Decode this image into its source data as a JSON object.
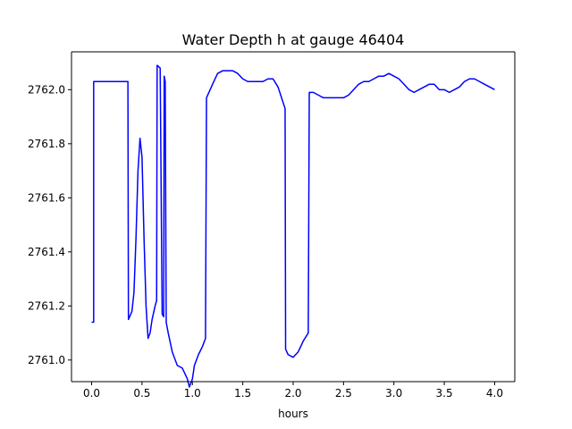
{
  "chart_data": {
    "type": "line",
    "title": "Water Depth h at gauge 46404",
    "xlabel": "hours",
    "ylabel": "",
    "xlim": [
      -0.2,
      4.2
    ],
    "ylim": [
      2760.92,
      2762.14
    ],
    "xticks": [
      0.0,
      0.5,
      1.0,
      1.5,
      2.0,
      2.5,
      3.0,
      3.5,
      4.0
    ],
    "xtick_labels": [
      "0.0",
      "0.5",
      "1.0",
      "1.5",
      "2.0",
      "2.5",
      "3.0",
      "3.5",
      "4.0"
    ],
    "yticks": [
      2761.0,
      2761.2,
      2761.4,
      2761.6,
      2761.8,
      2762.0
    ],
    "ytick_labels": [
      "2761.0",
      "2761.2",
      "2761.4",
      "2761.6",
      "2761.8",
      "2762.0"
    ],
    "grid": false,
    "series": [
      {
        "color": "#0000ff",
        "points": [
          [
            0.0,
            2761.14
          ],
          [
            0.02,
            2761.14
          ],
          [
            0.02,
            2762.03
          ],
          [
            0.1,
            2762.03
          ],
          [
            0.2,
            2762.03
          ],
          [
            0.3,
            2762.03
          ],
          [
            0.36,
            2762.03
          ],
          [
            0.365,
            2761.15
          ],
          [
            0.4,
            2761.18
          ],
          [
            0.42,
            2761.25
          ],
          [
            0.44,
            2761.45
          ],
          [
            0.46,
            2761.7
          ],
          [
            0.48,
            2761.82
          ],
          [
            0.5,
            2761.75
          ],
          [
            0.52,
            2761.45
          ],
          [
            0.54,
            2761.2
          ],
          [
            0.56,
            2761.08
          ],
          [
            0.58,
            2761.1
          ],
          [
            0.6,
            2761.15
          ],
          [
            0.63,
            2761.2
          ],
          [
            0.645,
            2761.22
          ],
          [
            0.65,
            2762.09
          ],
          [
            0.68,
            2762.08
          ],
          [
            0.7,
            2761.17
          ],
          [
            0.715,
            2761.16
          ],
          [
            0.72,
            2762.05
          ],
          [
            0.73,
            2762.03
          ],
          [
            0.74,
            2761.14
          ],
          [
            0.76,
            2761.1
          ],
          [
            0.8,
            2761.03
          ],
          [
            0.85,
            2760.98
          ],
          [
            0.9,
            2760.97
          ],
          [
            0.95,
            2760.93
          ],
          [
            0.97,
            2760.9
          ],
          [
            1.0,
            2760.93
          ],
          [
            1.02,
            2760.98
          ],
          [
            1.06,
            2761.02
          ],
          [
            1.1,
            2761.05
          ],
          [
            1.13,
            2761.08
          ],
          [
            1.14,
            2761.97
          ],
          [
            1.2,
            2762.02
          ],
          [
            1.25,
            2762.06
          ],
          [
            1.3,
            2762.07
          ],
          [
            1.4,
            2762.07
          ],
          [
            1.45,
            2762.06
          ],
          [
            1.5,
            2762.04
          ],
          [
            1.55,
            2762.03
          ],
          [
            1.6,
            2762.03
          ],
          [
            1.65,
            2762.03
          ],
          [
            1.7,
            2762.03
          ],
          [
            1.75,
            2762.04
          ],
          [
            1.8,
            2762.04
          ],
          [
            1.85,
            2762.01
          ],
          [
            1.92,
            2761.93
          ],
          [
            1.925,
            2761.04
          ],
          [
            1.95,
            2761.02
          ],
          [
            2.0,
            2761.01
          ],
          [
            2.05,
            2761.03
          ],
          [
            2.1,
            2761.07
          ],
          [
            2.15,
            2761.1
          ],
          [
            2.16,
            2761.99
          ],
          [
            2.2,
            2761.99
          ],
          [
            2.25,
            2761.98
          ],
          [
            2.3,
            2761.97
          ],
          [
            2.35,
            2761.97
          ],
          [
            2.4,
            2761.97
          ],
          [
            2.45,
            2761.97
          ],
          [
            2.5,
            2761.97
          ],
          [
            2.55,
            2761.98
          ],
          [
            2.6,
            2762.0
          ],
          [
            2.65,
            2762.02
          ],
          [
            2.7,
            2762.03
          ],
          [
            2.75,
            2762.03
          ],
          [
            2.8,
            2762.04
          ],
          [
            2.85,
            2762.05
          ],
          [
            2.9,
            2762.05
          ],
          [
            2.95,
            2762.06
          ],
          [
            3.0,
            2762.05
          ],
          [
            3.05,
            2762.04
          ],
          [
            3.1,
            2762.02
          ],
          [
            3.15,
            2762.0
          ],
          [
            3.2,
            2761.99
          ],
          [
            3.25,
            2762.0
          ],
          [
            3.3,
            2762.01
          ],
          [
            3.35,
            2762.02
          ],
          [
            3.4,
            2762.02
          ],
          [
            3.45,
            2762.0
          ],
          [
            3.5,
            2762.0
          ],
          [
            3.55,
            2761.99
          ],
          [
            3.6,
            2762.0
          ],
          [
            3.65,
            2762.01
          ],
          [
            3.7,
            2762.03
          ],
          [
            3.75,
            2762.04
          ],
          [
            3.8,
            2762.04
          ],
          [
            3.85,
            2762.03
          ],
          [
            3.9,
            2762.02
          ],
          [
            3.95,
            2762.01
          ],
          [
            4.0,
            2762.0
          ]
        ]
      }
    ]
  }
}
